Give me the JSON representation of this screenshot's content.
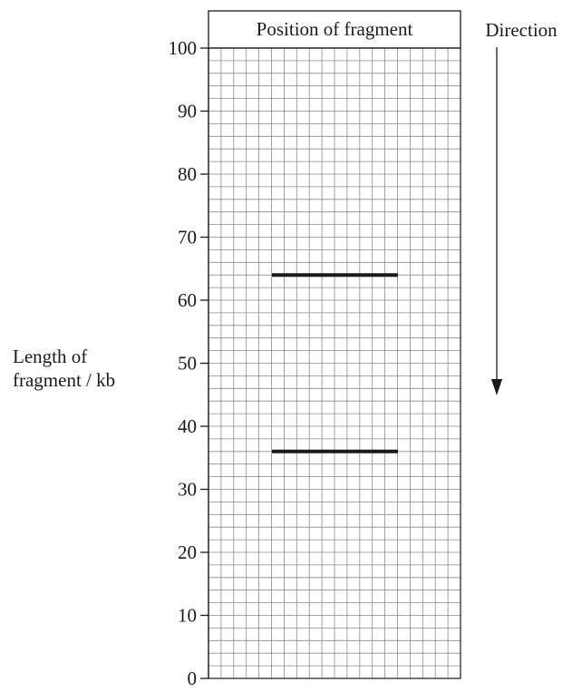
{
  "chart_data": {
    "type": "table",
    "header": "Position of fragment",
    "direction_label": "Direction",
    "ylabel": [
      "Length of",
      "fragment / kb"
    ],
    "ylim": [
      0,
      100
    ],
    "y_ticks": [
      0,
      10,
      20,
      30,
      40,
      50,
      60,
      70,
      80,
      90,
      100
    ],
    "grid": true,
    "bands": [
      {
        "length_kb": 64
      },
      {
        "length_kb": 36
      }
    ],
    "colors": {
      "grid": "#8c8c8c",
      "band": "#1a1a1a",
      "text": "#1a1a1a"
    }
  }
}
